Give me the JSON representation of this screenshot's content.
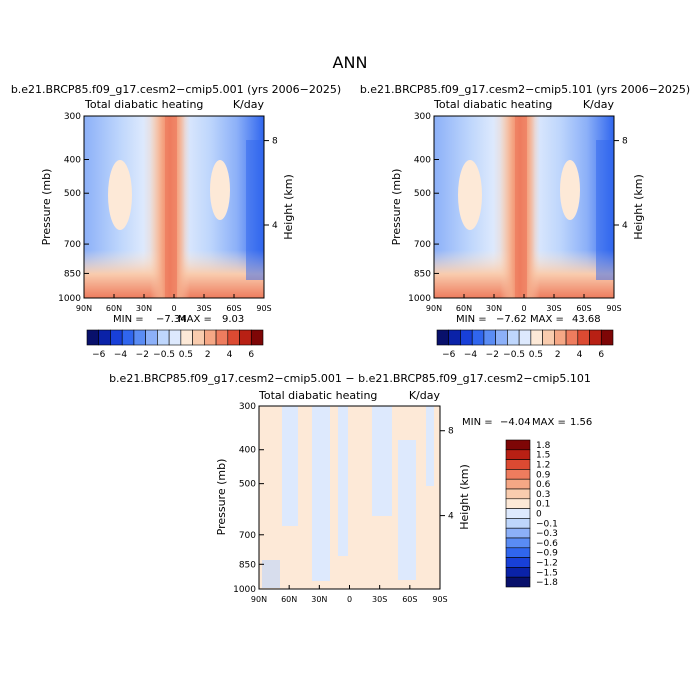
{
  "page_title": "ANN",
  "colorscale": {
    "main_colors": [
      "#08106b",
      "#0a22a8",
      "#1840d8",
      "#3066ee",
      "#5a8cf4",
      "#8cb0f8",
      "#bed6fc",
      "#dde9fd",
      "#fde9d7",
      "#f9ccae",
      "#f5a785",
      "#ee7c5e",
      "#dc4a32",
      "#b82014",
      "#7e0606"
    ],
    "diff_colors": [
      "#08106b",
      "#0a22a8",
      "#1840d8",
      "#3066ee",
      "#5a8cf4",
      "#8cb0f8",
      "#bed6fc",
      "#dde9fd",
      "#fde9d7",
      "#f9ccae",
      "#f5a785",
      "#ee7c5e",
      "#dc4a32",
      "#b82014",
      "#7e0606"
    ]
  },
  "chart_data": [
    {
      "type": "heatmap",
      "title": "b.e21.BRCP85.f09_g17.cesm2−cmip5.001 (yrs 2006−2025)",
      "subtitle_left": "Total diabatic heating",
      "units": "K/day",
      "ylabel": "Pressure (mb)",
      "ylabel_right": "Height (km)",
      "x_ticks": [
        "90N",
        "60N",
        "30N",
        "0",
        "30S",
        "60S",
        "90S"
      ],
      "y_ticks": [
        "300",
        "400",
        "500",
        "700",
        "850",
        "1000"
      ],
      "y_ticks_right": [
        "8",
        "4"
      ],
      "ylim": [
        1000,
        300
      ],
      "stats": {
        "min_label": "MIN =",
        "min": "−7.34",
        "max_label": "MAX =",
        "max": "9.03"
      },
      "colorbar_labels": [
        "−6",
        "−4",
        "−2",
        "−0.5",
        "0.5",
        "2",
        "4",
        "6"
      ]
    },
    {
      "type": "heatmap",
      "title": "b.e21.BRCP85.f09_g17.cesm2−cmip5.101 (yrs 2006−2025)",
      "subtitle_left": "Total diabatic heating",
      "units": "K/day",
      "ylabel": "Pressure (mb)",
      "ylabel_right": "Height (km)",
      "x_ticks": [
        "90N",
        "60N",
        "30N",
        "0",
        "30S",
        "60S",
        "90S"
      ],
      "y_ticks": [
        "300",
        "400",
        "500",
        "700",
        "850",
        "1000"
      ],
      "y_ticks_right": [
        "8",
        "4"
      ],
      "ylim": [
        1000,
        300
      ],
      "stats": {
        "min_label": "MIN =",
        "min": "−7.62",
        "max_label": "MAX =",
        "max": "43.68"
      },
      "colorbar_labels": [
        "−6",
        "−4",
        "−2",
        "−0.5",
        "0.5",
        "2",
        "4",
        "6"
      ]
    },
    {
      "type": "heatmap",
      "title": "b.e21.BRCP85.f09_g17.cesm2−cmip5.001 − b.e21.BRCP85.f09_g17.cesm2−cmip5.101",
      "subtitle_left": "Total diabatic heating",
      "units": "K/day",
      "ylabel": "Pressure (mb)",
      "ylabel_right": "Height (km)",
      "x_ticks": [
        "90N",
        "60N",
        "30N",
        "0",
        "30S",
        "60S",
        "90S"
      ],
      "y_ticks": [
        "300",
        "400",
        "500",
        "700",
        "850",
        "1000"
      ],
      "y_ticks_right": [
        "8",
        "4"
      ],
      "ylim": [
        1000,
        300
      ],
      "stats": {
        "min_label": "MIN =",
        "min": "−4.04",
        "max_label": "MAX =",
        "max": "1.56"
      },
      "colorbar_labels": [
        "1.8",
        "1.5",
        "1.2",
        "0.9",
        "0.6",
        "0.3",
        "0.1",
        "0",
        "−0.1",
        "−0.3",
        "−0.6",
        "−0.9",
        "−1.2",
        "−1.5",
        "−1.8"
      ]
    }
  ]
}
